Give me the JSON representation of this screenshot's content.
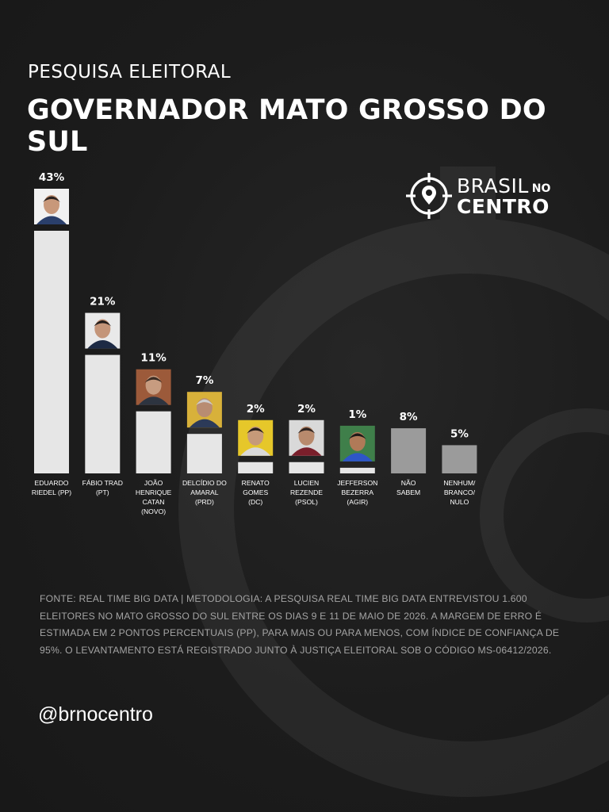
{
  "header": {
    "kicker": "PESQUISA ELEITORAL",
    "title": "GOVERNADOR MATO GROSSO DO SUL"
  },
  "logo": {
    "line1": "BRASIL",
    "small": "NO",
    "line2": "CENTRO",
    "icon": "target-pin-icon"
  },
  "colors": {
    "background": "#1d1d1d",
    "candidate_bar": "#e6e6e6",
    "other_bar": "#9b9b9b",
    "text": "#ffffff"
  },
  "chart_data": {
    "type": "bar",
    "ylim": [
      0,
      43
    ],
    "categories": [
      "EDUARDO RIEDEL (PP)",
      "FÁBIO TRAD (PT)",
      "JOÃO HENRIQUE CATAN (NOVO)",
      "DELCÍDIO DO AMARAL (PRD)",
      "RENATO GOMES (DC)",
      "LUCIEN REZENDE (PSOL)",
      "JEFFERSON BEZERRA (AGIR)",
      "NÃO SABEM",
      "NENHUM/ BRANCO/ NULO"
    ],
    "label_lines": [
      [
        "EDUARDO",
        "RIEDEL (PP)"
      ],
      [
        "FÁBIO TRAD",
        "(PT)"
      ],
      [
        "JOÃO",
        "HENRIQUE",
        "CATAN",
        "(NOVO)"
      ],
      [
        "DELCÍDIO DO",
        "AMARAL",
        "(PRD)"
      ],
      [
        "RENATO",
        "GOMES",
        "(DC)"
      ],
      [
        "LUCIEN",
        "REZENDE",
        "(PSOL)"
      ],
      [
        "JEFFERSON",
        "BEZERRA",
        "(AGIR)"
      ],
      [
        "NÃO",
        "SABEM"
      ],
      [
        "NENHUM/",
        "BRANCO/",
        "NULO"
      ]
    ],
    "values": [
      43,
      21,
      11,
      7,
      2,
      2,
      1,
      8,
      5
    ],
    "value_labels": [
      "43%",
      "21%",
      "11%",
      "7%",
      "2%",
      "2%",
      "1%",
      "8%",
      "5%"
    ],
    "has_photo": [
      true,
      true,
      true,
      true,
      true,
      true,
      true,
      false,
      false
    ],
    "photo_bg": [
      "#f1f1f1",
      "#e9e9e9",
      "#9c5a3a",
      "#d8b13a",
      "#e6c72a",
      "#d9d9d9",
      "#3f7f4a",
      null,
      null
    ],
    "photo_shirt": [
      "#2a3f6b",
      "#1d2a44",
      "#2d3440",
      "#2c3a58",
      "#d9d9d9",
      "#7a1f2b",
      "#2e56c7",
      null,
      null
    ],
    "photo_skin": [
      "#c8987a",
      "#c49579",
      "#c79c80",
      "#b88c72",
      "#c69a79",
      "#b88a6d",
      "#b07a58",
      null,
      null
    ],
    "photo_hair": [
      "#2b2320",
      "#231d1b",
      "#3a2b22",
      "#cfcfcf",
      "#241c19",
      "#2d2320",
      "#1e1a18",
      null,
      null
    ]
  },
  "footnote": "FONTE: REAL TIME BIG DATA  | METODOLOGIA: A PESQUISA REAL TIME BIG DATA ENTREVISTOU 1.600 ELEITORES NO MATO GROSSO DO SUL ENTRE OS DIAS 9 E 11 DE MAIO DE 2026. A MARGEM DE ERRO É ESTIMADA EM 2 PONTOS PERCENTUAIS (PP), PARA MAIS OU PARA MENOS, COM ÍNDICE DE CONFIANÇA DE 95%. O LEVANTAMENTO ESTÁ REGISTRADO JUNTO À JUSTIÇA ELEITORAL SOB O CÓDIGO MS-06412/2026.",
  "handle": "@brnocentro"
}
